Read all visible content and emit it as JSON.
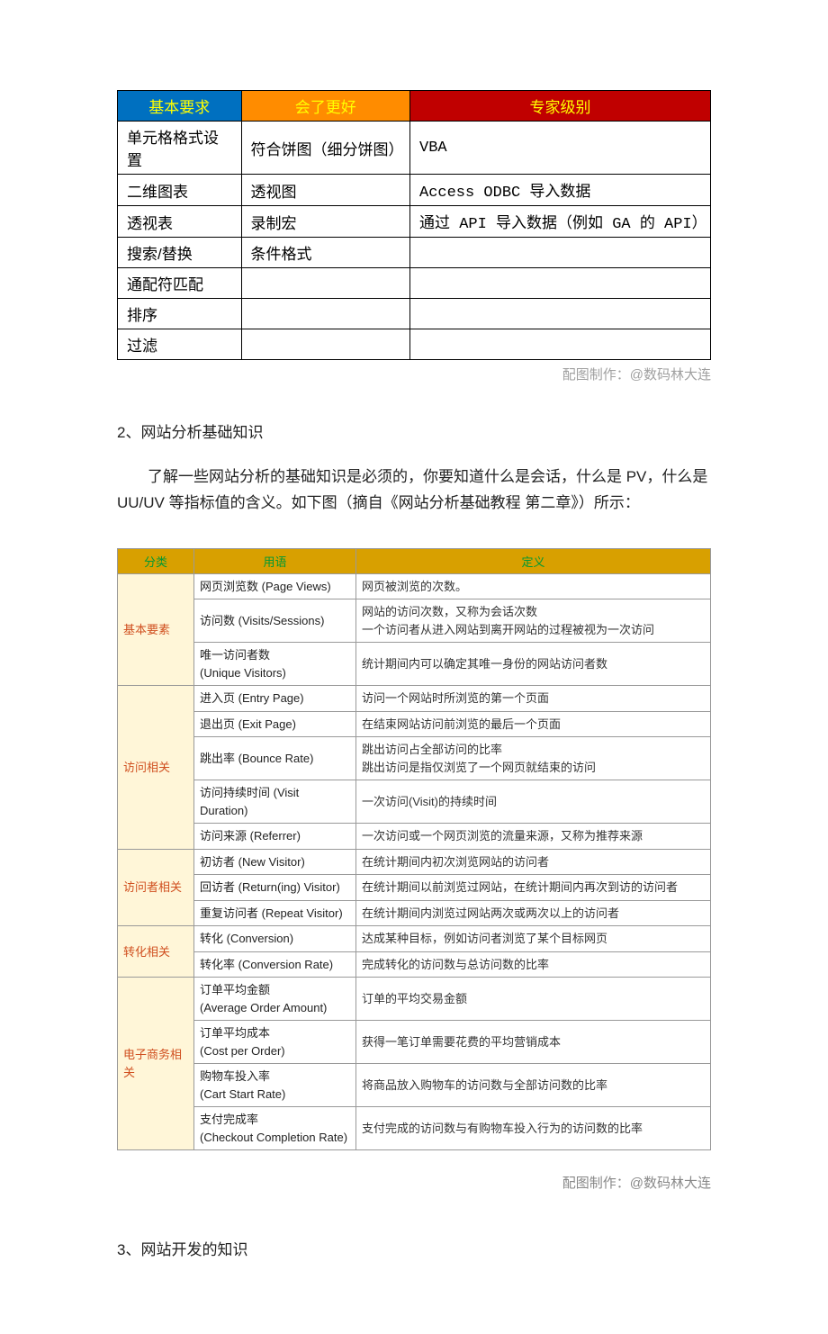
{
  "table1": {
    "headers": [
      "基本要求",
      "会了更好",
      "专家级别"
    ],
    "rows": [
      [
        "单元格格式设置",
        "符合饼图（细分饼图）",
        "VBA"
      ],
      [
        "二维图表",
        "透视图",
        "Access ODBC 导入数据"
      ],
      [
        "透视表",
        "录制宏",
        "通过 API 导入数据（例如 GA 的 API）"
      ],
      [
        "搜索/替换",
        "条件格式",
        ""
      ],
      [
        "通配符匹配",
        "",
        ""
      ],
      [
        "排序",
        "",
        ""
      ],
      [
        "过滤",
        "",
        ""
      ]
    ],
    "header_colors": [
      "#0070c0",
      "#ff8c00",
      "#c00000"
    ],
    "header_text_color": "#ffff00",
    "border_color": "#000000"
  },
  "credit1": "配图制作：@数码林大连",
  "section2_title": "2、网站分析基础知识",
  "paragraph2": "了解一些网站分析的基础知识是必须的，你要知道什么是会话，什么是 PV，什么是 UU/UV 等指标值的含义。如下图（摘自《网站分析基础教程  第二章》）所示：",
  "table2": {
    "headers": [
      "分类",
      "用语",
      "定义"
    ],
    "header_bg": "#d8a000",
    "header_fg": "#009933",
    "cat_bg": "#fff6d8",
    "cat_fg": "#d05020",
    "groups": [
      {
        "cat": "基本要素",
        "rows": [
          {
            "term": "网页浏览数 (Page Views)",
            "def": "网页被浏览的次数。"
          },
          {
            "term": "访问数 (Visits/Sessions)",
            "def": "网站的访问次数，又称为会话次数\n一个访问者从进入网站到离开网站的过程被视为一次访问"
          },
          {
            "term": "唯一访问者数\n(Unique  Visitors)",
            "def": "统计期间内可以确定其唯一身份的网站访问者数"
          }
        ]
      },
      {
        "cat": "访问相关",
        "rows": [
          {
            "term": "进入页 (Entry Page)",
            "def": "访问一个网站时所浏览的第一个页面"
          },
          {
            "term": "退出页 (Exit Page)",
            "def": "在结束网站访问前浏览的最后一个页面"
          },
          {
            "term": "跳出率 (Bounce Rate)",
            "def": "跳出访问占全部访问的比率\n跳出访问是指仅浏览了一个网页就结束的访问"
          },
          {
            "term": "访问持续时间 (Visit Duration)",
            "def": "一次访问(Visit)的持续时间"
          },
          {
            "term": "访问来源 (Referrer)",
            "def": "一次访问或一个网页浏览的流量来源，又称为推荐来源"
          }
        ]
      },
      {
        "cat": "访问者相关",
        "rows": [
          {
            "term": "初访者 (New Visitor)",
            "def": "在统计期间内初次浏览网站的访问者"
          },
          {
            "term": "回访者 (Return(ing) Visitor)",
            "def": "在统计期间以前浏览过网站，在统计期间内再次到访的访问者"
          },
          {
            "term": "重复访问者 (Repeat Visitor)",
            "def": "在统计期间内浏览过网站两次或两次以上的访问者"
          }
        ]
      },
      {
        "cat": "转化相关",
        "rows": [
          {
            "term": "转化 (Conversion)",
            "def": "达成某种目标，例如访问者浏览了某个目标网页"
          },
          {
            "term": "转化率 (Conversion Rate)",
            "def": "完成转化的访问数与总访问数的比率"
          }
        ]
      },
      {
        "cat": "电子商务相关",
        "rows": [
          {
            "term": "订单平均金额\n(Average Order Amount)",
            "def": "订单的平均交易金额"
          },
          {
            "term": "订单平均成本\n(Cost per Order)",
            "def": "获得一笔订单需要花费的平均营销成本"
          },
          {
            "term": "购物车投入率\n(Cart Start Rate)",
            "def": "将商品放入购物车的访问数与全部访问数的比率"
          },
          {
            "term": "支付完成率\n(Checkout Completion Rate)",
            "def": "支付完成的访问数与有购物车投入行为的访问数的比率"
          }
        ]
      }
    ]
  },
  "credit2": "配图制作：@数码林大连",
  "section3_title": "3、网站开发的知识"
}
